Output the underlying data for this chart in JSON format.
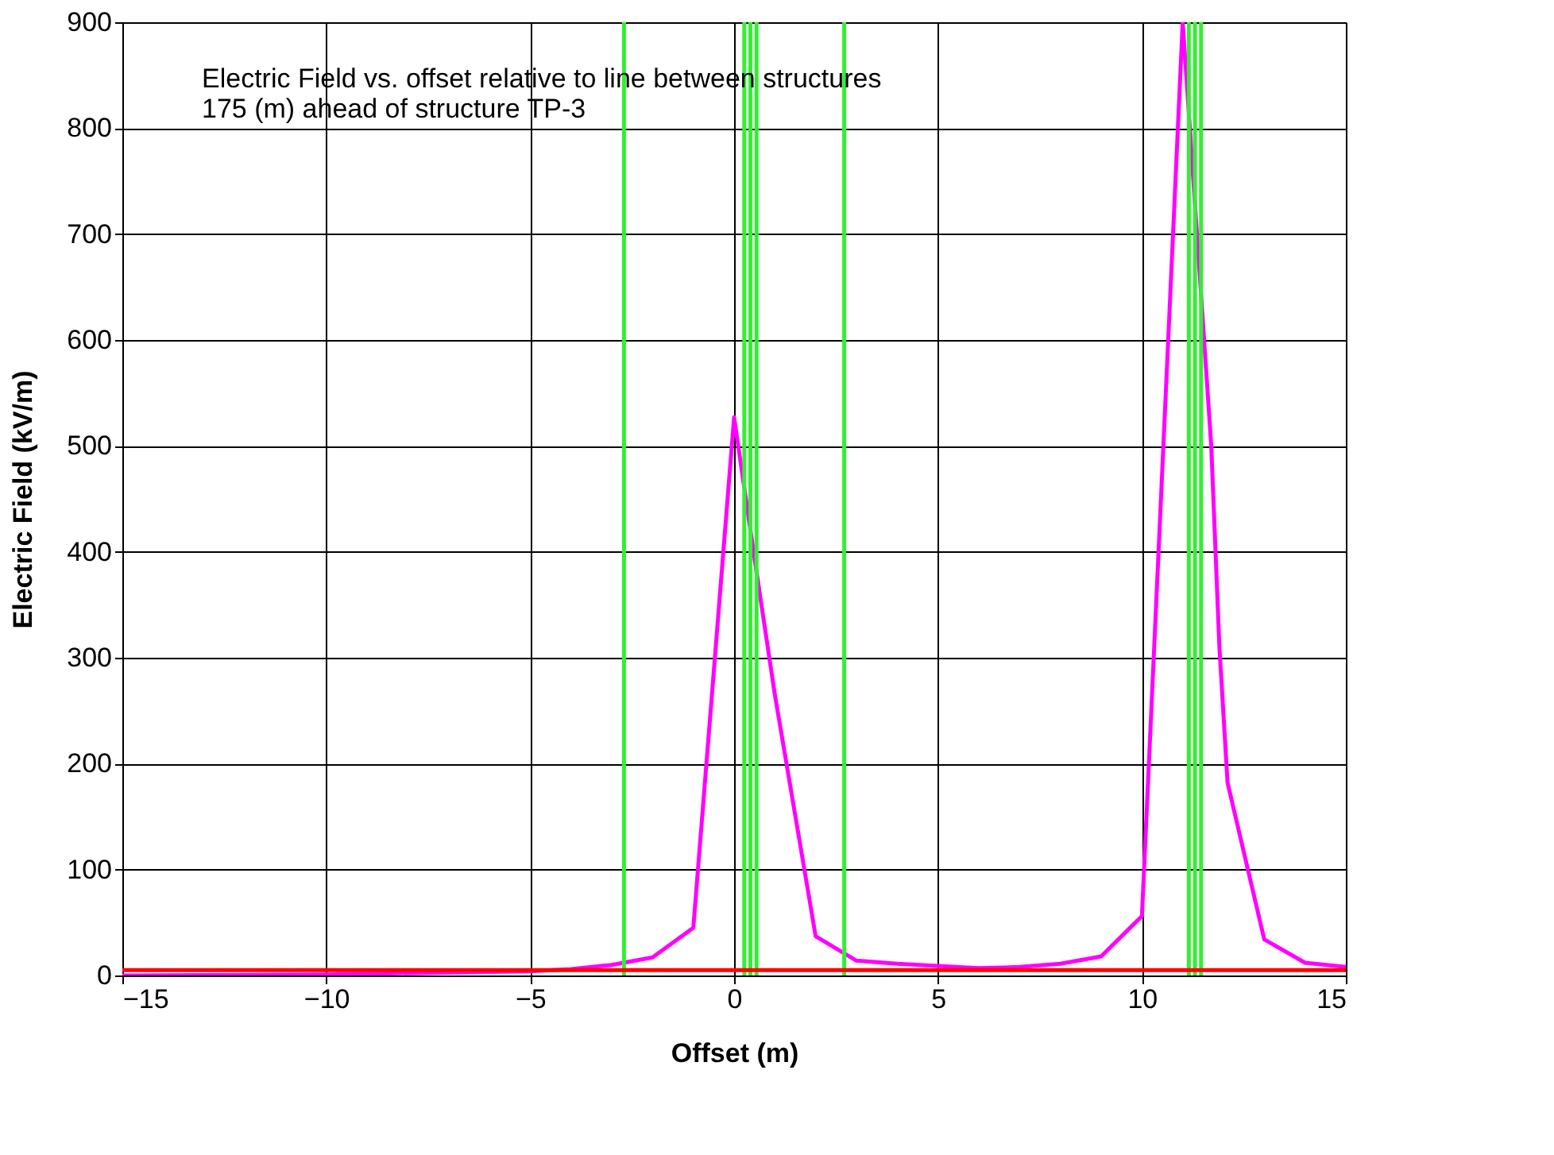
{
  "chart_data": {
    "type": "line",
    "xlabel": "Offset (m)",
    "ylabel": "Electric Field (kV/m)",
    "annotations": [
      "Electric Field vs. offset relative to line between structures",
      "175 (m) ahead of structure TP-3"
    ],
    "series": [
      {
        "color": "#ff00ff",
        "x": [
          -15,
          -10,
          -5,
          -4,
          -3,
          -2,
          -1,
          0,
          0.5,
          1,
          2,
          3,
          4,
          5,
          6,
          7,
          8,
          9,
          10,
          11,
          11.7,
          11.9,
          12.1,
          13,
          14,
          15
        ],
        "values": [
          0,
          1,
          4,
          6,
          10,
          17,
          45,
          527,
          394,
          265,
          37,
          14,
          11,
          9,
          7,
          8,
          11,
          18,
          56,
          900,
          500,
          310,
          182,
          34,
          12,
          8
        ]
      }
    ],
    "xlim": [
      -15,
      15
    ],
    "xticks": [
      -15,
      -10,
      -5,
      0,
      5,
      10,
      15
    ],
    "ylim": [
      0,
      900
    ],
    "yticks": [
      0,
      100,
      200,
      300,
      400,
      500,
      600,
      700,
      800,
      900
    ],
    "grid": true,
    "marker": "none",
    "line_style": "solid",
    "ref_lines": [
      {
        "axis": "y",
        "value": 5,
        "color": "#ff0000"
      },
      {
        "axis": "x",
        "value": -2.7,
        "color": "#33ee33"
      },
      {
        "axis": "x",
        "value": 0.25,
        "color": "#33ee33"
      },
      {
        "axis": "x",
        "value": 0.4,
        "color": "#33ee33"
      },
      {
        "axis": "x",
        "value": 0.55,
        "color": "#33ee33"
      },
      {
        "axis": "x",
        "value": 2.7,
        "color": "#33ee33"
      },
      {
        "axis": "x",
        "value": 11.15,
        "color": "#33ee33"
      },
      {
        "axis": "x",
        "value": 11.3,
        "color": "#33ee33"
      },
      {
        "axis": "x",
        "value": 11.45,
        "color": "#33ee33"
      }
    ]
  }
}
